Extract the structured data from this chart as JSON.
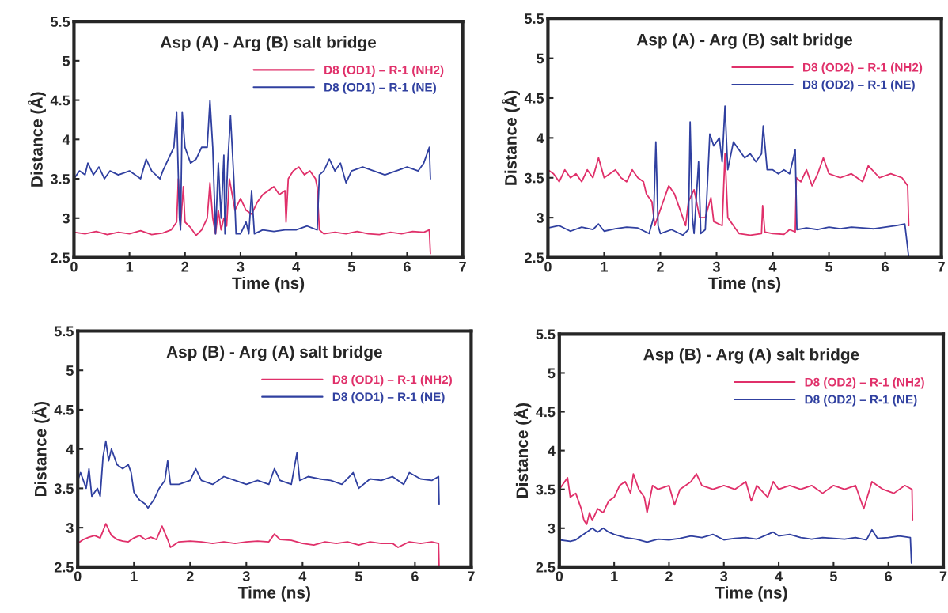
{
  "chart_data": [
    {
      "type": "line",
      "title": "Asp (A) - Arg (B) salt bridge",
      "xlabel": "Time (ns)",
      "ylabel": "Distance (Å)",
      "xlim": [
        0,
        7
      ],
      "ylim": [
        2.5,
        5.5
      ],
      "xticks": [
        0,
        1,
        2,
        3,
        4,
        5,
        6,
        7
      ],
      "yticks": [
        2.5,
        3,
        3.5,
        4,
        4.5,
        5,
        5.5
      ],
      "grid": false,
      "legend": "top right",
      "series": [
        {
          "name": "D8 (OD1) – R-1 (NH2)",
          "color": "#e0306a",
          "x": [
            0,
            0.2,
            0.4,
            0.6,
            0.8,
            1.0,
            1.2,
            1.4,
            1.6,
            1.75,
            1.85,
            1.88,
            1.92,
            1.97,
            2.0,
            2.1,
            2.2,
            2.3,
            2.4,
            2.45,
            2.5,
            2.55,
            2.6,
            2.65,
            2.7,
            2.75,
            2.8,
            2.85,
            2.9,
            3.0,
            3.1,
            3.2,
            3.3,
            3.4,
            3.5,
            3.6,
            3.7,
            3.8,
            3.82,
            3.86,
            3.95,
            4.05,
            4.15,
            4.25,
            4.35,
            4.38,
            4.42,
            4.5,
            4.7,
            4.9,
            5.1,
            5.3,
            5.5,
            5.7,
            5.9,
            6.1,
            6.3,
            6.4,
            6.42
          ],
          "values": [
            2.82,
            2.8,
            2.83,
            2.79,
            2.82,
            2.8,
            2.84,
            2.79,
            2.81,
            2.85,
            2.95,
            3.5,
            2.9,
            3.4,
            2.95,
            2.88,
            2.78,
            2.85,
            3.0,
            3.45,
            3.0,
            2.8,
            3.1,
            2.85,
            3.0,
            2.9,
            3.5,
            3.3,
            3.1,
            3.25,
            3.1,
            3.05,
            3.2,
            3.3,
            3.35,
            3.4,
            3.3,
            3.35,
            2.95,
            3.5,
            3.6,
            3.65,
            3.55,
            3.6,
            3.5,
            3.4,
            2.85,
            2.8,
            2.82,
            2.8,
            2.83,
            2.8,
            2.79,
            2.82,
            2.8,
            2.83,
            2.82,
            2.85,
            2.55
          ]
        },
        {
          "name": "D8 (OD1) – R-1 (NE)",
          "color": "#3040a0",
          "x": [
            0,
            0.1,
            0.2,
            0.25,
            0.35,
            0.45,
            0.55,
            0.65,
            0.8,
            1.0,
            1.2,
            1.3,
            1.4,
            1.55,
            1.6,
            1.7,
            1.8,
            1.85,
            1.9,
            1.92,
            1.95,
            2.0,
            2.1,
            2.2,
            2.3,
            2.4,
            2.45,
            2.5,
            2.55,
            2.6,
            2.65,
            2.7,
            2.72,
            2.77,
            2.82,
            2.88,
            2.92,
            3.0,
            3.1,
            3.15,
            3.2,
            3.25,
            3.4,
            3.6,
            3.8,
            4.0,
            4.2,
            4.38,
            4.42,
            4.5,
            4.6,
            4.7,
            4.8,
            4.9,
            5.0,
            5.2,
            5.4,
            5.6,
            5.8,
            6.0,
            6.2,
            6.3,
            6.4,
            6.42
          ],
          "values": [
            3.5,
            3.6,
            3.55,
            3.7,
            3.55,
            3.65,
            3.5,
            3.6,
            3.55,
            3.6,
            3.5,
            3.75,
            3.6,
            3.5,
            3.6,
            3.75,
            3.9,
            4.35,
            3.0,
            2.85,
            4.35,
            3.9,
            3.7,
            3.75,
            3.9,
            3.9,
            4.5,
            3.9,
            2.8,
            3.7,
            3.0,
            3.8,
            2.8,
            3.7,
            4.3,
            3.5,
            2.8,
            2.8,
            2.95,
            2.8,
            3.35,
            2.8,
            2.85,
            2.83,
            2.85,
            2.85,
            2.9,
            2.85,
            3.55,
            3.6,
            3.75,
            3.6,
            3.7,
            3.45,
            3.6,
            3.65,
            3.6,
            3.55,
            3.6,
            3.65,
            3.6,
            3.7,
            3.9,
            3.5
          ]
        }
      ]
    },
    {
      "type": "line",
      "title": "Asp (A) - Arg (B) salt bridge",
      "xlabel": "Time (ns)",
      "ylabel": "Distance (Å)",
      "xlim": [
        0,
        7
      ],
      "ylim": [
        2.5,
        5.5
      ],
      "xticks": [
        0,
        1,
        2,
        3,
        4,
        5,
        6,
        7
      ],
      "yticks": [
        2.5,
        3,
        3.5,
        4,
        4.5,
        5,
        5.5
      ],
      "grid": false,
      "legend": "top right",
      "series": [
        {
          "name": "D8 (OD2) – R-1 (NH2)",
          "color": "#e0306a",
          "x": [
            0,
            0.1,
            0.2,
            0.3,
            0.4,
            0.5,
            0.6,
            0.7,
            0.8,
            0.9,
            1.0,
            1.1,
            1.2,
            1.3,
            1.4,
            1.5,
            1.6,
            1.7,
            1.75,
            1.85,
            1.9,
            1.95,
            2.05,
            2.15,
            2.25,
            2.35,
            2.45,
            2.5,
            2.6,
            2.7,
            2.8,
            2.9,
            2.95,
            3.1,
            3.15,
            3.2,
            3.3,
            3.4,
            3.6,
            3.8,
            3.82,
            3.86,
            4.0,
            4.2,
            4.3,
            4.4,
            4.42,
            4.5,
            4.6,
            4.7,
            4.8,
            4.9,
            5.0,
            5.2,
            5.4,
            5.6,
            5.7,
            5.9,
            6.1,
            6.3,
            6.4,
            6.42
          ],
          "values": [
            3.6,
            3.55,
            3.45,
            3.6,
            3.5,
            3.55,
            3.45,
            3.6,
            3.5,
            3.75,
            3.5,
            3.55,
            3.6,
            3.5,
            3.45,
            3.6,
            3.5,
            3.45,
            3.3,
            3.2,
            2.9,
            3.0,
            3.2,
            3.4,
            3.3,
            3.1,
            2.9,
            3.2,
            3.35,
            3.0,
            3.0,
            3.25,
            2.95,
            2.9,
            3.8,
            3.0,
            2.9,
            2.8,
            2.78,
            2.8,
            3.15,
            2.82,
            2.8,
            2.79,
            2.85,
            2.82,
            3.5,
            3.45,
            3.6,
            3.4,
            3.55,
            3.75,
            3.55,
            3.5,
            3.55,
            3.45,
            3.65,
            3.5,
            3.55,
            3.5,
            3.4,
            2.9
          ]
        },
        {
          "name": "D8 (OD2) – R-1 (NE)",
          "color": "#3040a0",
          "x": [
            0,
            0.2,
            0.4,
            0.6,
            0.8,
            0.9,
            1.0,
            1.2,
            1.4,
            1.6,
            1.8,
            1.88,
            1.92,
            1.96,
            2.0,
            2.2,
            2.4,
            2.5,
            2.53,
            2.57,
            2.6,
            2.68,
            2.72,
            2.8,
            2.88,
            2.95,
            3.05,
            3.1,
            3.15,
            3.2,
            3.3,
            3.4,
            3.5,
            3.6,
            3.7,
            3.8,
            3.83,
            3.9,
            4.0,
            4.1,
            4.2,
            4.3,
            4.4,
            4.43,
            4.6,
            4.8,
            5.0,
            5.2,
            5.4,
            5.6,
            5.8,
            6.0,
            6.2,
            6.35,
            6.42
          ],
          "values": [
            2.87,
            2.9,
            2.83,
            2.88,
            2.85,
            2.92,
            2.83,
            2.86,
            2.88,
            2.87,
            2.8,
            3.0,
            3.95,
            2.9,
            2.8,
            2.85,
            2.78,
            2.85,
            4.2,
            3.0,
            2.8,
            3.7,
            2.8,
            2.85,
            4.05,
            3.9,
            4.0,
            3.7,
            4.4,
            3.6,
            3.95,
            3.85,
            3.75,
            3.8,
            3.7,
            3.8,
            4.15,
            3.6,
            3.6,
            3.55,
            3.6,
            3.55,
            3.85,
            2.85,
            2.87,
            2.85,
            2.88,
            2.86,
            2.88,
            2.87,
            2.86,
            2.88,
            2.9,
            2.92,
            2.5
          ]
        }
      ]
    },
    {
      "type": "line",
      "title": "Asp (B) - Arg (A) salt bridge",
      "xlabel": "Time (ns)",
      "ylabel": "Distance (Å)",
      "xlim": [
        0,
        7
      ],
      "ylim": [
        2.5,
        5.5
      ],
      "xticks": [
        0,
        1,
        2,
        3,
        4,
        5,
        6,
        7
      ],
      "yticks": [
        2.5,
        3,
        3.5,
        4,
        4.5,
        5,
        5.5
      ],
      "grid": false,
      "legend": "top right",
      "series": [
        {
          "name": "D8 (OD1) – R-1 (NH2)",
          "color": "#e0306a",
          "x": [
            0,
            0.1,
            0.2,
            0.3,
            0.4,
            0.5,
            0.6,
            0.7,
            0.8,
            0.9,
            1.0,
            1.1,
            1.2,
            1.3,
            1.4,
            1.5,
            1.6,
            1.65,
            1.8,
            2.0,
            2.2,
            2.4,
            2.6,
            2.8,
            3.0,
            3.2,
            3.4,
            3.5,
            3.6,
            3.8,
            4.0,
            4.2,
            4.4,
            4.6,
            4.8,
            5.0,
            5.2,
            5.4,
            5.6,
            5.7,
            5.9,
            6.1,
            6.3,
            6.42,
            6.43
          ],
          "values": [
            2.8,
            2.85,
            2.88,
            2.9,
            2.87,
            3.05,
            2.9,
            2.85,
            2.83,
            2.82,
            2.87,
            2.9,
            2.85,
            2.88,
            2.85,
            3.02,
            2.85,
            2.75,
            2.82,
            2.83,
            2.82,
            2.8,
            2.82,
            2.8,
            2.82,
            2.83,
            2.82,
            2.92,
            2.85,
            2.84,
            2.8,
            2.78,
            2.82,
            2.8,
            2.82,
            2.78,
            2.82,
            2.8,
            2.8,
            2.75,
            2.82,
            2.8,
            2.82,
            2.8,
            2.5
          ]
        },
        {
          "name": "D8 (OD1) – R-1 (NE)",
          "color": "#3040a0",
          "x": [
            0,
            0.05,
            0.15,
            0.2,
            0.25,
            0.35,
            0.4,
            0.45,
            0.5,
            0.55,
            0.6,
            0.7,
            0.8,
            0.9,
            0.95,
            1.0,
            1.1,
            1.2,
            1.25,
            1.35,
            1.45,
            1.55,
            1.6,
            1.65,
            1.8,
            2.0,
            2.1,
            2.2,
            2.4,
            2.6,
            2.8,
            3.0,
            3.2,
            3.4,
            3.5,
            3.6,
            3.8,
            3.9,
            3.95,
            4.1,
            4.3,
            4.5,
            4.7,
            4.9,
            5.0,
            5.2,
            5.4,
            5.6,
            5.8,
            5.9,
            6.1,
            6.3,
            6.42,
            6.43
          ],
          "values": [
            3.6,
            3.7,
            3.5,
            3.75,
            3.4,
            3.5,
            3.4,
            3.9,
            4.1,
            3.85,
            4.0,
            3.8,
            3.75,
            3.8,
            3.7,
            3.45,
            3.35,
            3.3,
            3.25,
            3.35,
            3.5,
            3.6,
            3.85,
            3.55,
            3.55,
            3.6,
            3.75,
            3.6,
            3.55,
            3.65,
            3.6,
            3.55,
            3.6,
            3.55,
            3.75,
            3.6,
            3.55,
            3.95,
            3.6,
            3.65,
            3.62,
            3.6,
            3.55,
            3.7,
            3.5,
            3.62,
            3.6,
            3.65,
            3.55,
            3.7,
            3.62,
            3.6,
            3.65,
            3.3
          ]
        }
      ]
    },
    {
      "type": "line",
      "title": "Asp (B) - Arg (A) salt bridge",
      "xlabel": "Time (ns)",
      "ylabel": "Distance (Å)",
      "xlim": [
        0,
        7
      ],
      "ylim": [
        2.5,
        5.5
      ],
      "xticks": [
        0,
        1,
        2,
        3,
        4,
        5,
        6,
        7
      ],
      "yticks": [
        2.5,
        3,
        3.5,
        4,
        4.5,
        5,
        5.5
      ],
      "grid": false,
      "legend": "top right",
      "series": [
        {
          "name": "D8 (OD2) – R-1 (NH2)",
          "color": "#e0306a",
          "x": [
            0,
            0.1,
            0.15,
            0.2,
            0.3,
            0.4,
            0.45,
            0.5,
            0.55,
            0.6,
            0.7,
            0.8,
            0.9,
            1.0,
            1.1,
            1.2,
            1.3,
            1.35,
            1.45,
            1.55,
            1.6,
            1.7,
            1.8,
            2.0,
            2.1,
            2.2,
            2.4,
            2.5,
            2.6,
            2.8,
            3.0,
            3.2,
            3.4,
            3.5,
            3.6,
            3.8,
            3.9,
            4.0,
            4.2,
            4.4,
            4.6,
            4.8,
            5.0,
            5.2,
            5.4,
            5.55,
            5.7,
            5.9,
            6.1,
            6.3,
            6.43,
            6.44
          ],
          "values": [
            3.5,
            3.6,
            3.65,
            3.4,
            3.45,
            3.25,
            3.1,
            3.05,
            3.2,
            3.1,
            3.25,
            3.2,
            3.35,
            3.4,
            3.55,
            3.6,
            3.45,
            3.7,
            3.5,
            3.4,
            3.2,
            3.55,
            3.5,
            3.55,
            3.3,
            3.5,
            3.6,
            3.7,
            3.55,
            3.5,
            3.55,
            3.5,
            3.6,
            3.35,
            3.55,
            3.4,
            3.6,
            3.5,
            3.55,
            3.5,
            3.55,
            3.45,
            3.55,
            3.5,
            3.55,
            3.25,
            3.6,
            3.5,
            3.45,
            3.55,
            3.5,
            3.1
          ]
        },
        {
          "name": "D8 (OD2) – R-1 (NE)",
          "color": "#3040a0",
          "x": [
            0,
            0.2,
            0.3,
            0.4,
            0.5,
            0.6,
            0.7,
            0.8,
            0.9,
            1.0,
            1.2,
            1.4,
            1.6,
            1.8,
            2.0,
            2.2,
            2.4,
            2.6,
            2.8,
            3.0,
            3.2,
            3.4,
            3.6,
            3.8,
            3.9,
            4.0,
            4.2,
            4.4,
            4.6,
            4.8,
            5.0,
            5.2,
            5.4,
            5.6,
            5.7,
            5.8,
            6.0,
            6.2,
            6.4,
            6.42
          ],
          "values": [
            2.85,
            2.83,
            2.85,
            2.9,
            2.95,
            3.0,
            2.95,
            3.0,
            2.95,
            2.92,
            2.88,
            2.86,
            2.82,
            2.86,
            2.85,
            2.87,
            2.9,
            2.88,
            2.92,
            2.85,
            2.87,
            2.88,
            2.86,
            2.92,
            2.95,
            2.9,
            2.92,
            2.88,
            2.86,
            2.88,
            2.87,
            2.86,
            2.88,
            2.85,
            2.98,
            2.87,
            2.88,
            2.9,
            2.88,
            2.55
          ]
        }
      ]
    }
  ]
}
